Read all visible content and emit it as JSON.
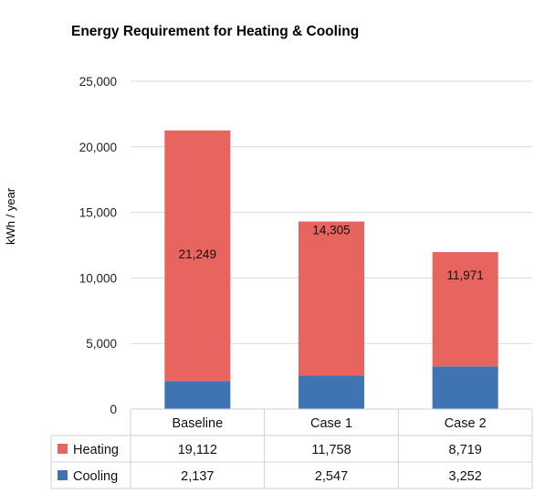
{
  "chart_data": {
    "type": "bar",
    "stacked": true,
    "title": "Energy Requirement for Heating & Cooling",
    "xlabel": "",
    "ylabel": "kWh / year",
    "ylim": [
      0,
      25000
    ],
    "yticks": [
      0,
      5000,
      10000,
      15000,
      20000,
      25000
    ],
    "ytick_labels": [
      "0",
      "5,000",
      "10,000",
      "15,000",
      "20,000",
      "25,000"
    ],
    "grid": true,
    "categories": [
      "Baseline",
      "Case 1",
      "Case 2"
    ],
    "series": [
      {
        "name": "Heating",
        "values": [
          19112,
          11758,
          8719
        ],
        "labels": [
          "19,112",
          "11,758",
          "8,719"
        ],
        "color": "#e8645e"
      },
      {
        "name": "Cooling",
        "values": [
          2137,
          2547,
          3252
        ],
        "labels": [
          "2,137",
          "2,547",
          "3,252"
        ],
        "color": "#3f73b1"
      }
    ],
    "total_labels": [
      "21,249",
      "14,305",
      "11,971"
    ],
    "legend": "data-table-below"
  }
}
